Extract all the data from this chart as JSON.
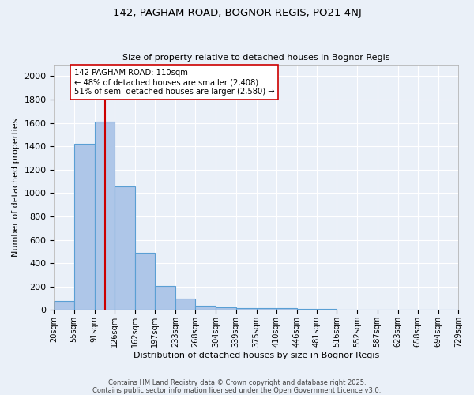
{
  "title1": "142, PAGHAM ROAD, BOGNOR REGIS, PO21 4NJ",
  "title2": "Size of property relative to detached houses in Bognor Regis",
  "xlabel": "Distribution of detached houses by size in Bognor Regis",
  "ylabel": "Number of detached properties",
  "bin_edges": [
    20,
    55,
    91,
    126,
    162,
    197,
    233,
    268,
    304,
    339,
    375,
    410,
    446,
    481,
    516,
    552,
    587,
    623,
    658,
    694,
    729
  ],
  "bar_heights": [
    75,
    1420,
    1610,
    1055,
    490,
    205,
    100,
    35,
    25,
    15,
    15,
    15,
    10,
    10,
    5,
    5,
    5,
    5,
    5,
    5
  ],
  "bar_color": "#aec6e8",
  "bar_edgecolor": "#5a9fd4",
  "vline_x": 110,
  "vline_color": "#cc0000",
  "annotation_text": "142 PAGHAM ROAD: 110sqm\n← 48% of detached houses are smaller (2,408)\n51% of semi-detached houses are larger (2,580) →",
  "annotation_box_color": "#ffffff",
  "annotation_box_edgecolor": "#cc0000",
  "ylim": [
    0,
    2100
  ],
  "yticks": [
    0,
    200,
    400,
    600,
    800,
    1000,
    1200,
    1400,
    1600,
    1800,
    2000
  ],
  "bg_color": "#eaf0f8",
  "grid_color": "#ffffff",
  "footer1": "Contains HM Land Registry data © Crown copyright and database right 2025.",
  "footer2": "Contains public sector information licensed under the Open Government Licence v3.0."
}
